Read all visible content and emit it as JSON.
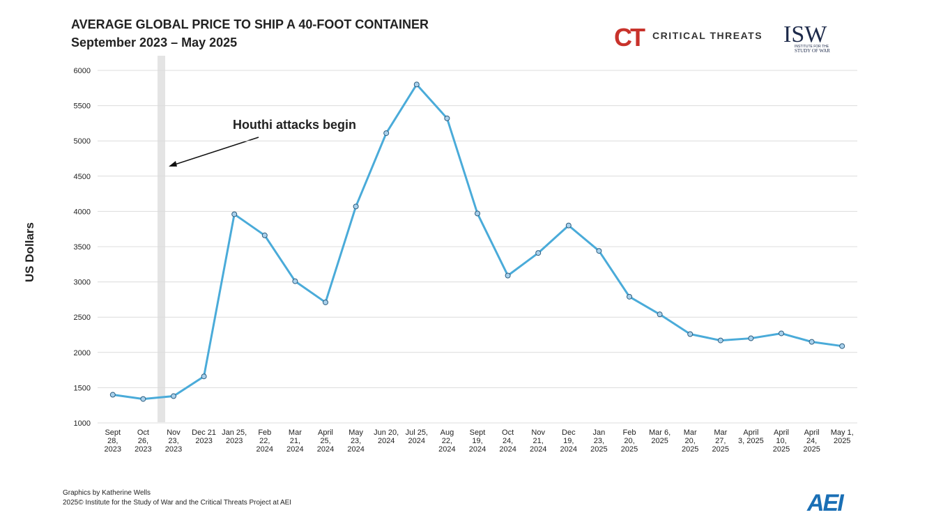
{
  "chart_data": {
    "type": "line",
    "title": "AVERAGE GLOBAL PRICE TO SHIP A 40-FOOT CONTAINER",
    "subtitle": "September 2023 – May 2025",
    "y_label": "US Dollars",
    "annotation": "Houthi attacks begin",
    "logos": {
      "ct_mark": "CT",
      "ct": "CRITICAL THREATS",
      "isw": "ISW",
      "isw_sub1": "INSTITUTE FOR THE",
      "isw_sub2": "STUDY OF WAR",
      "aei": "AEI"
    },
    "credits": [
      "Graphics by Katherine Wells",
      "2025© Institute for the Study of War and the Critical Threats Project at AEI"
    ],
    "categories": [
      "Sept\n28,\n2023",
      "Oct\n26,\n2023",
      "Nov\n23,\n2023",
      "Dec 21\n2023",
      "Jan 25,\n2023",
      "Feb\n22,\n2024",
      "Mar\n21,\n2024",
      "April\n25,\n2024",
      "May\n23,\n2024",
      "Jun 20,\n2024",
      "Jul 25,\n2024",
      "Aug\n22,\n2024",
      "Sept\n19,\n2024",
      "Oct\n24,\n2024",
      "Nov\n21,\n2024",
      "Dec\n19,\n2024",
      "Jan\n23,\n2025",
      "Feb\n20,\n2025",
      "Mar 6,\n2025",
      "Mar\n20,\n2025",
      "Mar\n27,\n2025",
      "April\n3, 2025",
      "April\n10,\n2025",
      "April\n24,\n2025",
      "May 1,\n2025"
    ],
    "series": [
      {
        "name": "Average price",
        "color": "#4aabd9",
        "values": [
          1400,
          1340,
          1380,
          1660,
          3960,
          3660,
          3010,
          2710,
          4070,
          5110,
          5800,
          5320,
          3970,
          3090,
          3410,
          3800,
          3440,
          2790,
          2540,
          2260,
          2170,
          2200,
          2270,
          2150,
          2090
        ]
      }
    ],
    "ylim": [
      1000,
      6000
    ],
    "yticks": [
      1000,
      1500,
      2000,
      2500,
      3000,
      3500,
      4000,
      4500,
      5000,
      5500,
      6000
    ],
    "grid": true
  }
}
